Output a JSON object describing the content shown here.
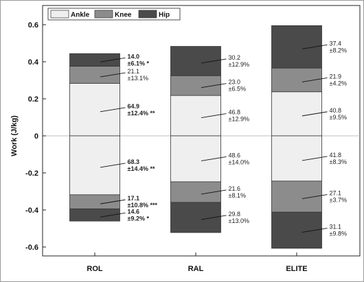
{
  "chart_data": {
    "type": "bar",
    "stacked": true,
    "categories": [
      "ROL",
      "RAL",
      "ELITE"
    ],
    "ylabel": "Work (J/kg)",
    "ylim": [
      -0.7,
      0.65
    ],
    "yticks": [
      -0.6,
      -0.4,
      -0.2,
      0,
      0.2,
      0.4,
      0.6
    ],
    "ytick_labels": [
      "-0.6",
      "-0.4",
      "-0.2",
      "0",
      "0.2",
      "0.4",
      "0.6"
    ],
    "legend": {
      "position": "top-left",
      "entries": [
        "Ankle",
        "Knee",
        "Hip"
      ]
    },
    "series": [
      {
        "name": "Ankle",
        "color": "#efefef",
        "positive": [
          0.283,
          0.218,
          0.238
        ],
        "negative": [
          -0.318,
          -0.248,
          -0.244
        ]
      },
      {
        "name": "Knee",
        "color": "#8c8c8c",
        "positive": [
          0.093,
          0.107,
          0.128
        ],
        "negative": [
          -0.076,
          -0.111,
          -0.168
        ]
      },
      {
        "name": "Hip",
        "color": "#4a4a4a",
        "positive": [
          0.068,
          0.158,
          0.229
        ],
        "negative": [
          -0.066,
          -0.163,
          -0.195
        ]
      }
    ],
    "annotations": [
      {
        "category": "ROL",
        "segment": "Hip",
        "sign": "positive",
        "value": "14.0",
        "sd": "±6.1% *",
        "bold": true
      },
      {
        "category": "ROL",
        "segment": "Knee",
        "sign": "positive",
        "value": "21.1",
        "sd": "±13.1%",
        "bold": false
      },
      {
        "category": "ROL",
        "segment": "Ankle",
        "sign": "positive",
        "value": "64.9",
        "sd": "±12.4% **",
        "bold": true
      },
      {
        "category": "ROL",
        "segment": "Ankle",
        "sign": "negative",
        "value": "68.3",
        "sd": "±14.4% **",
        "bold": true
      },
      {
        "category": "ROL",
        "segment": "Knee",
        "sign": "negative",
        "value": "17.1",
        "sd": "±10.8% ***",
        "bold": true
      },
      {
        "category": "ROL",
        "segment": "Hip",
        "sign": "negative",
        "value": "14.6",
        "sd": "±9.2% *",
        "bold": true
      },
      {
        "category": "RAL",
        "segment": "Hip",
        "sign": "positive",
        "value": "30.2",
        "sd": "±12.9%",
        "bold": false
      },
      {
        "category": "RAL",
        "segment": "Knee",
        "sign": "positive",
        "value": "23.0",
        "sd": "±6.5%",
        "bold": false
      },
      {
        "category": "RAL",
        "segment": "Ankle",
        "sign": "positive",
        "value": "46.8",
        "sd": "±12.9%",
        "bold": false
      },
      {
        "category": "RAL",
        "segment": "Ankle",
        "sign": "negative",
        "value": "48.6",
        "sd": "±14.0%",
        "bold": false
      },
      {
        "category": "RAL",
        "segment": "Knee",
        "sign": "negative",
        "value": "21.6",
        "sd": "±8.1%",
        "bold": false
      },
      {
        "category": "RAL",
        "segment": "Hip",
        "sign": "negative",
        "value": "29.8",
        "sd": "±13.0%",
        "bold": false
      },
      {
        "category": "ELITE",
        "segment": "Hip",
        "sign": "positive",
        "value": "37.4",
        "sd": "±8.2%",
        "bold": false
      },
      {
        "category": "ELITE",
        "segment": "Knee",
        "sign": "positive",
        "value": "21.9",
        "sd": "±4.2%",
        "bold": false
      },
      {
        "category": "ELITE",
        "segment": "Ankle",
        "sign": "positive",
        "value": "40.8",
        "sd": "±9.5%",
        "bold": false
      },
      {
        "category": "ELITE",
        "segment": "Ankle",
        "sign": "negative",
        "value": "41.8",
        "sd": "±8.3%",
        "bold": false
      },
      {
        "category": "ELITE",
        "segment": "Knee",
        "sign": "negative",
        "value": "27.1",
        "sd": "±3.7%",
        "bold": false
      },
      {
        "category": "ELITE",
        "segment": "Hip",
        "sign": "negative",
        "value": "31.1",
        "sd": "±9.8%",
        "bold": false
      }
    ]
  }
}
